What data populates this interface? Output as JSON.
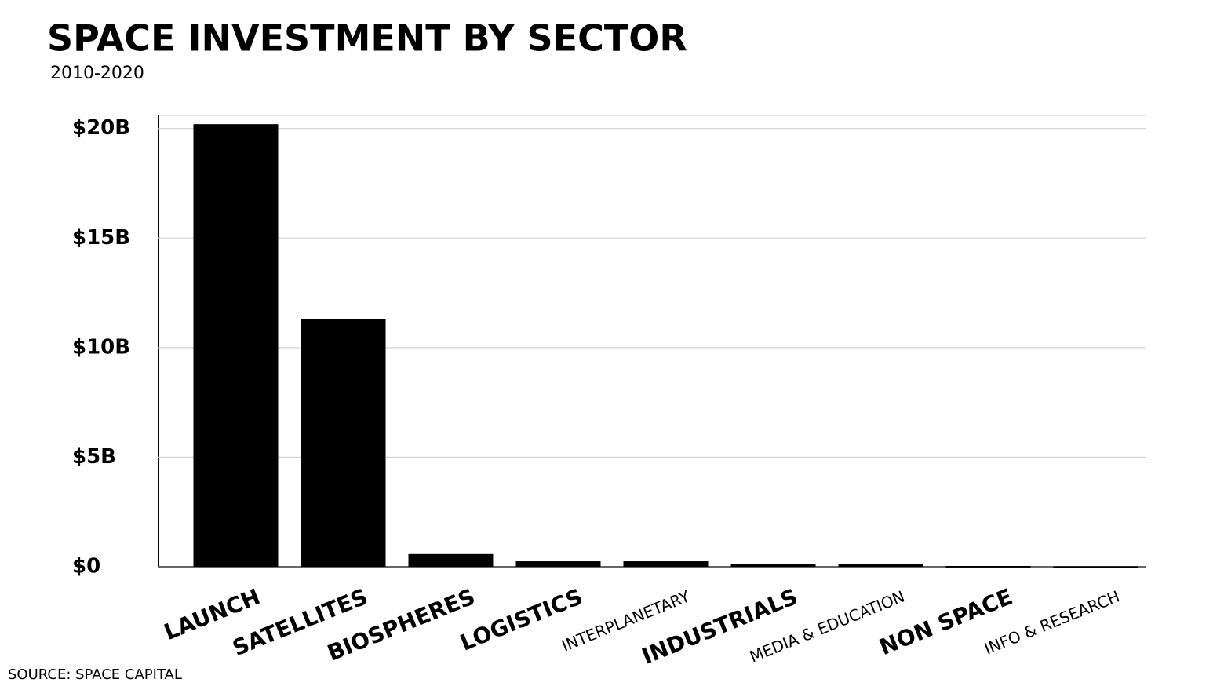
{
  "chart_data": {
    "type": "bar",
    "title": "SPACE INVESTMENT BY SECTOR",
    "subtitle": "2010-2020",
    "categories": [
      "LAUNCH",
      "SATELLITES",
      "BIOSPHERES",
      "LOGISTICS",
      "INTERPLANETARY",
      "INDUSTRIALS",
      "MEDIA & EDUCATION",
      "NON SPACE",
      "INFO & RESEARCH"
    ],
    "values": [
      20.2,
      11.3,
      0.58,
      0.25,
      0.25,
      0.14,
      0.14,
      0.02,
      0.01
    ],
    "color": "#000000",
    "ylim": [
      0,
      20.6
    ],
    "yticks": [
      {
        "value": 0,
        "label": "$0"
      },
      {
        "value": 5,
        "label": "$5B"
      },
      {
        "value": 10,
        "label": "$10B"
      },
      {
        "value": 15,
        "label": "$15B"
      },
      {
        "value": 20,
        "label": "$20B"
      }
    ],
    "grid": true,
    "source": "SOURCE: SPACE CAPITAL"
  }
}
